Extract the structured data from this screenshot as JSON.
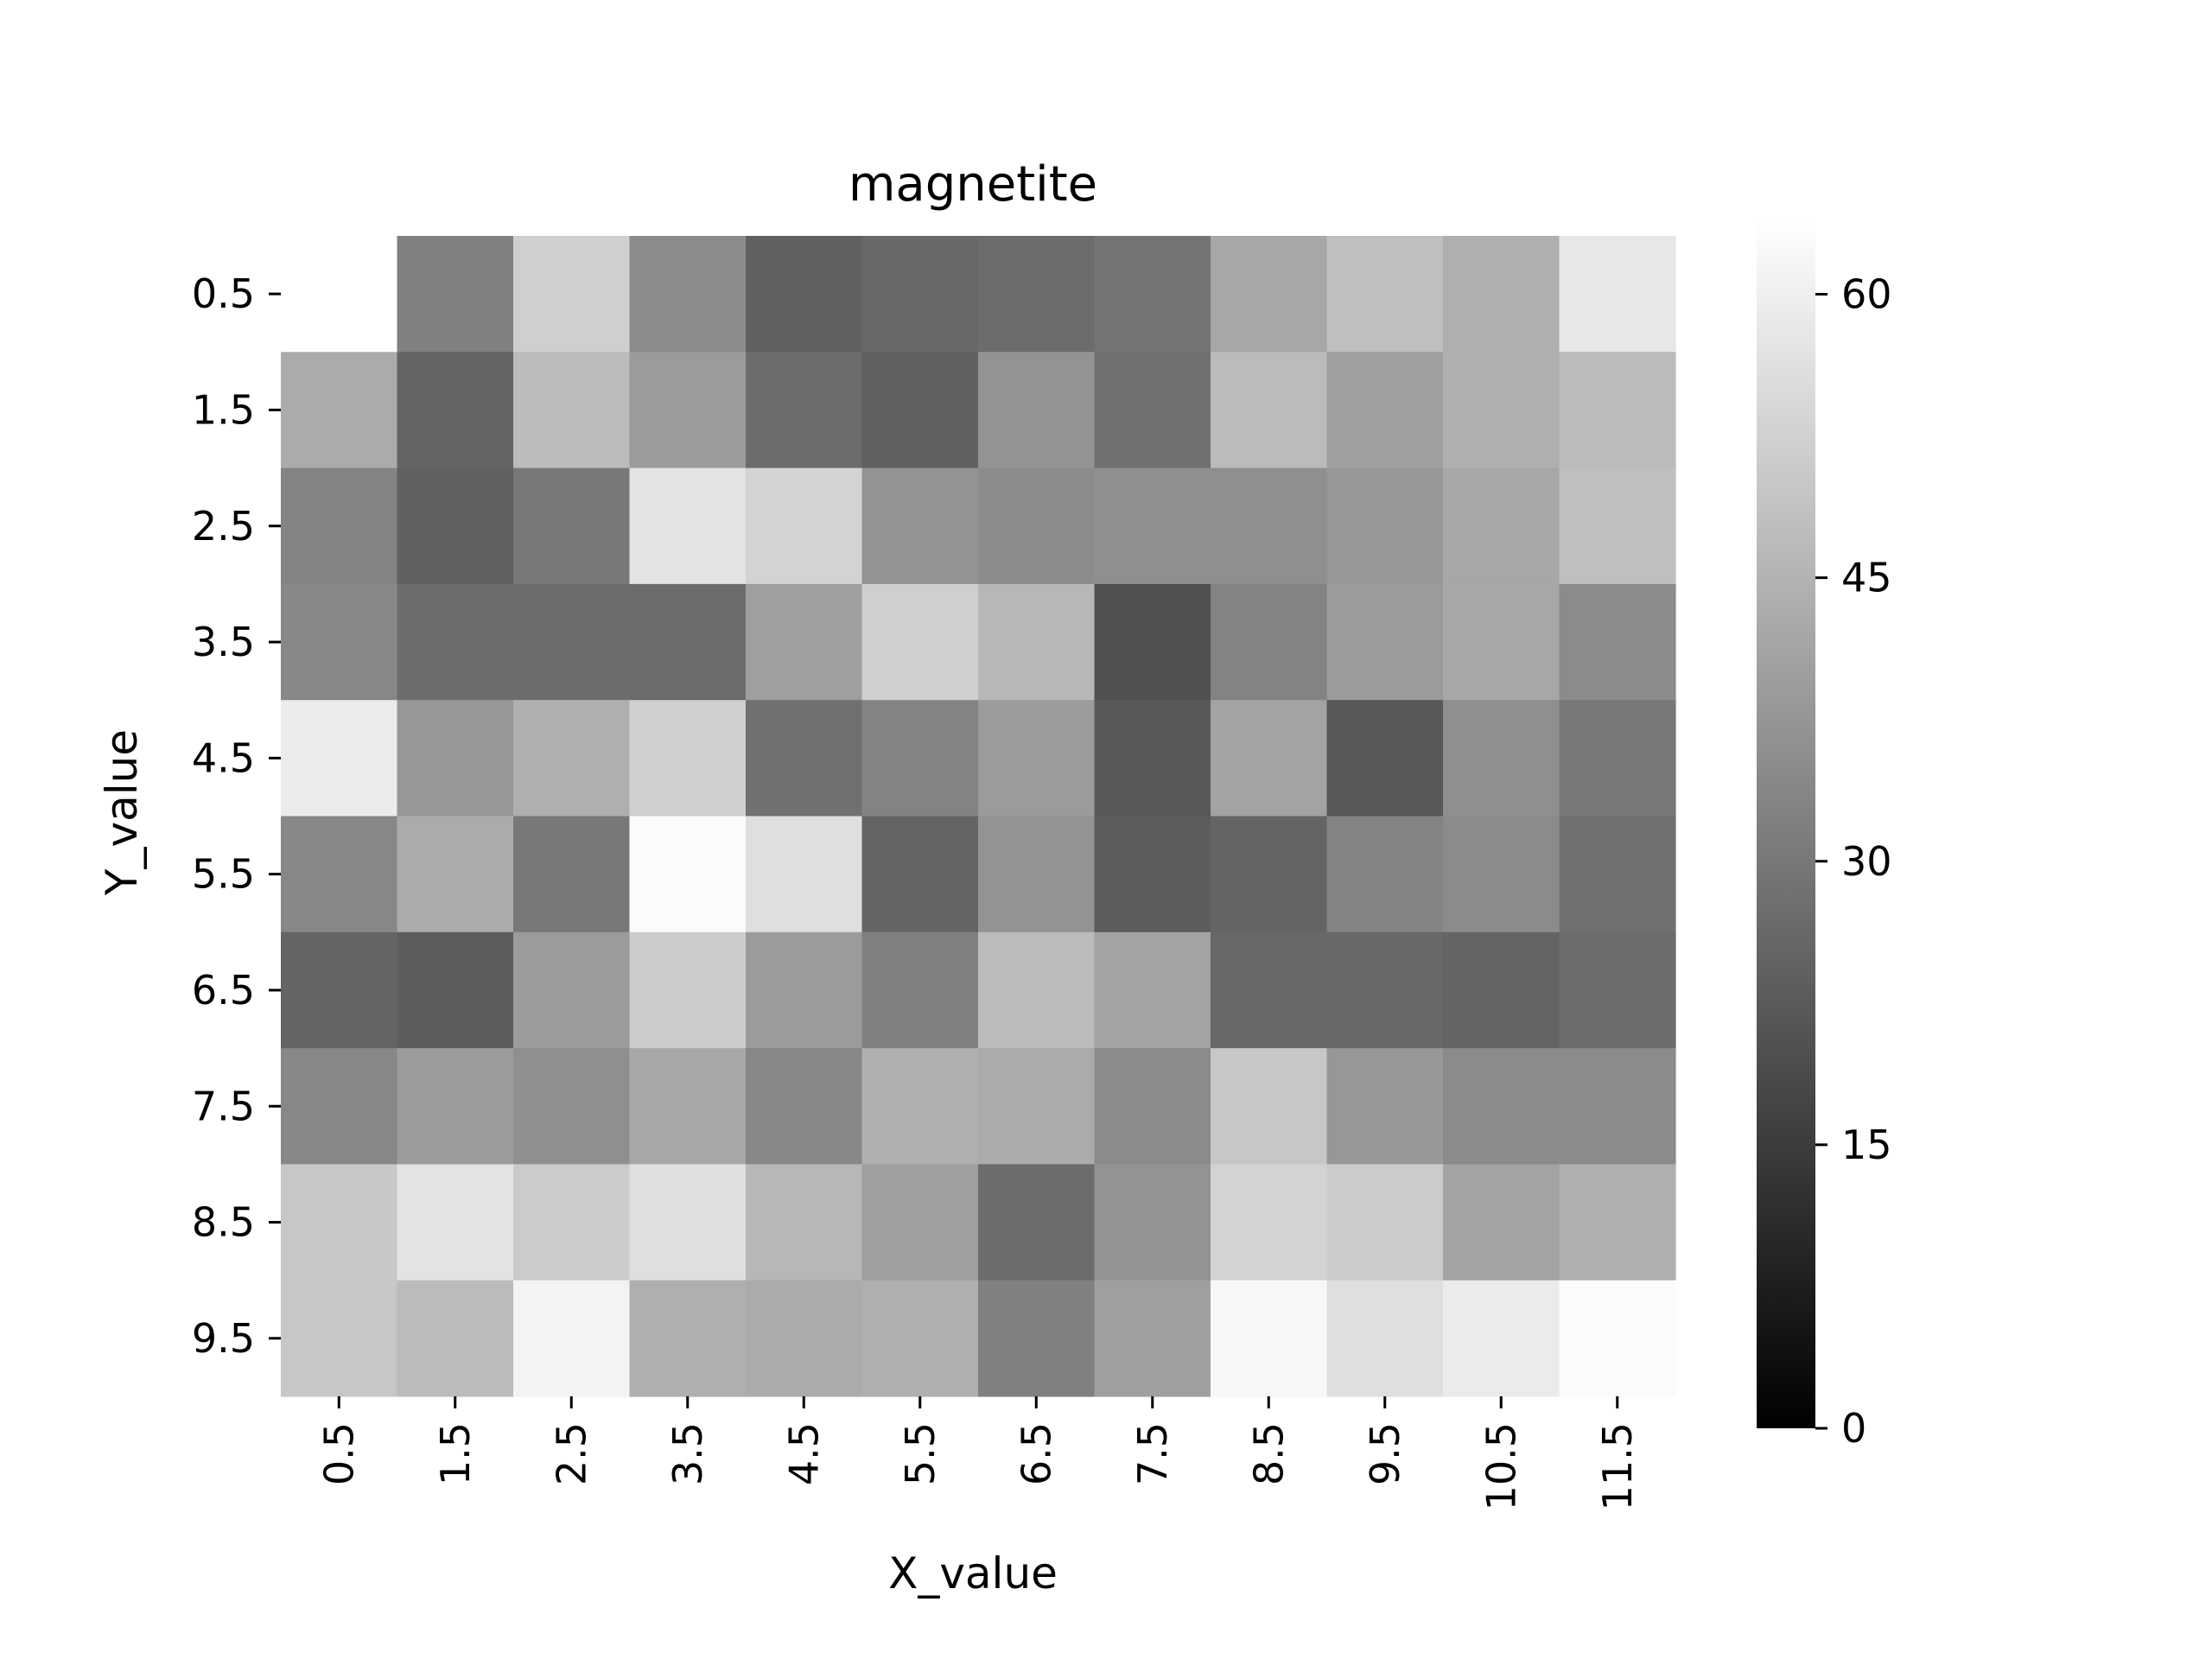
{
  "chart_data": {
    "type": "heatmap",
    "title": "magnetite",
    "xlabel": "X_value",
    "ylabel": "Y_value",
    "x_categories": [
      "0.5",
      "1.5",
      "2.5",
      "3.5",
      "4.5",
      "5.5",
      "6.5",
      "7.5",
      "8.5",
      "9.5",
      "10.5",
      "11.5"
    ],
    "y_categories": [
      "0.5",
      "1.5",
      "2.5",
      "3.5",
      "4.5",
      "5.5",
      "6.5",
      "7.5",
      "8.5",
      "9.5"
    ],
    "values": [
      [
        null,
        32,
        52,
        35,
        24,
        26,
        27,
        29,
        42,
        48,
        44,
        58
      ],
      [
        43,
        25,
        47,
        39,
        27,
        24,
        37,
        28,
        47,
        40,
        44,
        47
      ],
      [
        33,
        24,
        30,
        57,
        53,
        37,
        35,
        36,
        36,
        38,
        42,
        48
      ],
      [
        34,
        27,
        27,
        27,
        40,
        52,
        46,
        20,
        33,
        39,
        42,
        35
      ],
      [
        59,
        38,
        44,
        52,
        28,
        33,
        39,
        22,
        41,
        22,
        36,
        30
      ],
      [
        34,
        43,
        30,
        63,
        56,
        25,
        37,
        23,
        25,
        33,
        35,
        28
      ],
      [
        25,
        23,
        39,
        51,
        39,
        32,
        47,
        41,
        26,
        26,
        25,
        27
      ],
      [
        34,
        39,
        36,
        42,
        34,
        44,
        43,
        35,
        50,
        38,
        35,
        35
      ],
      [
        50,
        57,
        51,
        56,
        46,
        40,
        27,
        37,
        53,
        51,
        41,
        44
      ],
      [
        50,
        47,
        61,
        44,
        43,
        44,
        32,
        40,
        62,
        56,
        59,
        63
      ]
    ],
    "colorbar": {
      "min": 0,
      "max": 64,
      "ticks": [
        0,
        15,
        30,
        45,
        60
      ],
      "colormap": "gray"
    },
    "legend_placement": "right colorbar",
    "grid": false
  }
}
